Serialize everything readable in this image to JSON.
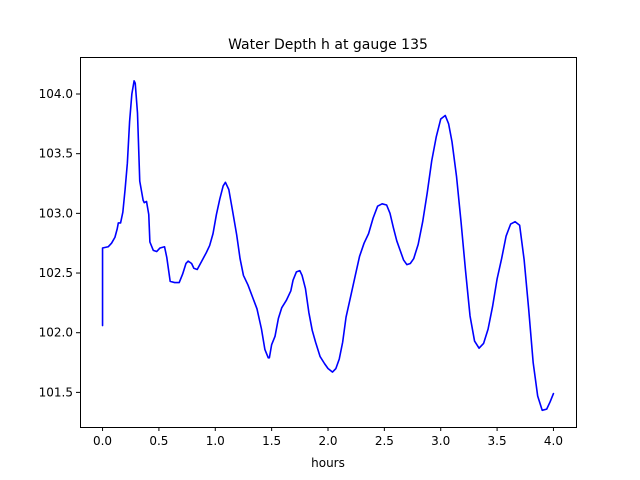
{
  "chart_data": {
    "type": "line",
    "title": "Water Depth h at gauge 135",
    "xlabel": "hours",
    "ylabel": "",
    "xlim": [
      -0.2,
      4.2
    ],
    "ylim": [
      101.21,
      104.31
    ],
    "grid": false,
    "legend": "none",
    "x_ticks": [
      {
        "value": 0.0,
        "label": "0.0"
      },
      {
        "value": 0.5,
        "label": "0.5"
      },
      {
        "value": 1.0,
        "label": "1.0"
      },
      {
        "value": 1.5,
        "label": "1.5"
      },
      {
        "value": 2.0,
        "label": "2.0"
      },
      {
        "value": 2.5,
        "label": "2.5"
      },
      {
        "value": 3.0,
        "label": "3.0"
      },
      {
        "value": 3.5,
        "label": "3.5"
      },
      {
        "value": 4.0,
        "label": "4.0"
      }
    ],
    "y_ticks": [
      {
        "value": 101.5,
        "label": "101.5"
      },
      {
        "value": 102.0,
        "label": "102.0"
      },
      {
        "value": 102.5,
        "label": "102.5"
      },
      {
        "value": 103.0,
        "label": "103.0"
      },
      {
        "value": 103.5,
        "label": "103.5"
      },
      {
        "value": 104.0,
        "label": "104.0"
      }
    ],
    "series": [
      {
        "color": "#0000ff",
        "points": [
          [
            0.0,
            102.06
          ],
          [
            0.0,
            102.71
          ],
          [
            0.05,
            102.72
          ],
          [
            0.08,
            102.75
          ],
          [
            0.11,
            102.8
          ],
          [
            0.13,
            102.87
          ],
          [
            0.14,
            102.92
          ],
          [
            0.16,
            102.92
          ],
          [
            0.18,
            103.01
          ],
          [
            0.2,
            103.2
          ],
          [
            0.22,
            103.42
          ],
          [
            0.24,
            103.77
          ],
          [
            0.26,
            104.0
          ],
          [
            0.28,
            104.11
          ],
          [
            0.29,
            104.09
          ],
          [
            0.31,
            103.84
          ],
          [
            0.33,
            103.27
          ],
          [
            0.36,
            103.11
          ],
          [
            0.37,
            103.09
          ],
          [
            0.39,
            103.1
          ],
          [
            0.41,
            102.99
          ],
          [
            0.42,
            102.76
          ],
          [
            0.45,
            102.69
          ],
          [
            0.48,
            102.68
          ],
          [
            0.51,
            102.71
          ],
          [
            0.55,
            102.72
          ],
          [
            0.57,
            102.63
          ],
          [
            0.6,
            102.43
          ],
          [
            0.64,
            102.42
          ],
          [
            0.68,
            102.42
          ],
          [
            0.71,
            102.49
          ],
          [
            0.74,
            102.58
          ],
          [
            0.76,
            102.6
          ],
          [
            0.79,
            102.58
          ],
          [
            0.81,
            102.54
          ],
          [
            0.84,
            102.53
          ],
          [
            0.88,
            102.6
          ],
          [
            0.92,
            102.67
          ],
          [
            0.95,
            102.73
          ],
          [
            0.98,
            102.83
          ],
          [
            1.01,
            102.99
          ],
          [
            1.04,
            103.12
          ],
          [
            1.07,
            103.23
          ],
          [
            1.09,
            103.26
          ],
          [
            1.12,
            103.2
          ],
          [
            1.15,
            103.04
          ],
          [
            1.19,
            102.82
          ],
          [
            1.22,
            102.62
          ],
          [
            1.25,
            102.48
          ],
          [
            1.29,
            102.4
          ],
          [
            1.33,
            102.3
          ],
          [
            1.37,
            102.2
          ],
          [
            1.41,
            102.03
          ],
          [
            1.44,
            101.86
          ],
          [
            1.47,
            101.79
          ],
          [
            1.48,
            101.79
          ],
          [
            1.5,
            101.9
          ],
          [
            1.53,
            101.97
          ],
          [
            1.56,
            102.12
          ],
          [
            1.59,
            102.21
          ],
          [
            1.63,
            102.27
          ],
          [
            1.67,
            102.35
          ],
          [
            1.69,
            102.44
          ],
          [
            1.72,
            102.51
          ],
          [
            1.75,
            102.52
          ],
          [
            1.77,
            102.48
          ],
          [
            1.8,
            102.37
          ],
          [
            1.83,
            102.17
          ],
          [
            1.86,
            102.02
          ],
          [
            1.89,
            101.92
          ],
          [
            1.93,
            101.8
          ],
          [
            1.97,
            101.74
          ],
          [
            2.0,
            101.7
          ],
          [
            2.04,
            101.67
          ],
          [
            2.07,
            101.7
          ],
          [
            2.1,
            101.78
          ],
          [
            2.13,
            101.92
          ],
          [
            2.16,
            102.13
          ],
          [
            2.2,
            102.3
          ],
          [
            2.24,
            102.47
          ],
          [
            2.28,
            102.64
          ],
          [
            2.32,
            102.75
          ],
          [
            2.36,
            102.83
          ],
          [
            2.4,
            102.96
          ],
          [
            2.44,
            103.06
          ],
          [
            2.48,
            103.08
          ],
          [
            2.52,
            103.07
          ],
          [
            2.55,
            103.0
          ],
          [
            2.58,
            102.88
          ],
          [
            2.61,
            102.77
          ],
          [
            2.64,
            102.69
          ],
          [
            2.67,
            102.61
          ],
          [
            2.7,
            102.57
          ],
          [
            2.73,
            102.58
          ],
          [
            2.76,
            102.62
          ],
          [
            2.8,
            102.74
          ],
          [
            2.84,
            102.93
          ],
          [
            2.88,
            103.17
          ],
          [
            2.92,
            103.44
          ],
          [
            2.96,
            103.64
          ],
          [
            3.0,
            103.79
          ],
          [
            3.04,
            103.82
          ],
          [
            3.07,
            103.75
          ],
          [
            3.1,
            103.6
          ],
          [
            3.14,
            103.31
          ],
          [
            3.18,
            102.93
          ],
          [
            3.22,
            102.52
          ],
          [
            3.26,
            102.14
          ],
          [
            3.3,
            101.93
          ],
          [
            3.34,
            101.87
          ],
          [
            3.38,
            101.91
          ],
          [
            3.42,
            102.03
          ],
          [
            3.46,
            102.22
          ],
          [
            3.5,
            102.45
          ],
          [
            3.54,
            102.62
          ],
          [
            3.58,
            102.81
          ],
          [
            3.62,
            102.91
          ],
          [
            3.66,
            102.93
          ],
          [
            3.7,
            102.9
          ],
          [
            3.74,
            102.61
          ],
          [
            3.78,
            102.2
          ],
          [
            3.82,
            101.75
          ],
          [
            3.86,
            101.47
          ],
          [
            3.9,
            101.35
          ],
          [
            3.94,
            101.36
          ],
          [
            3.97,
            101.42
          ],
          [
            4.0,
            101.49
          ]
        ]
      }
    ]
  }
}
